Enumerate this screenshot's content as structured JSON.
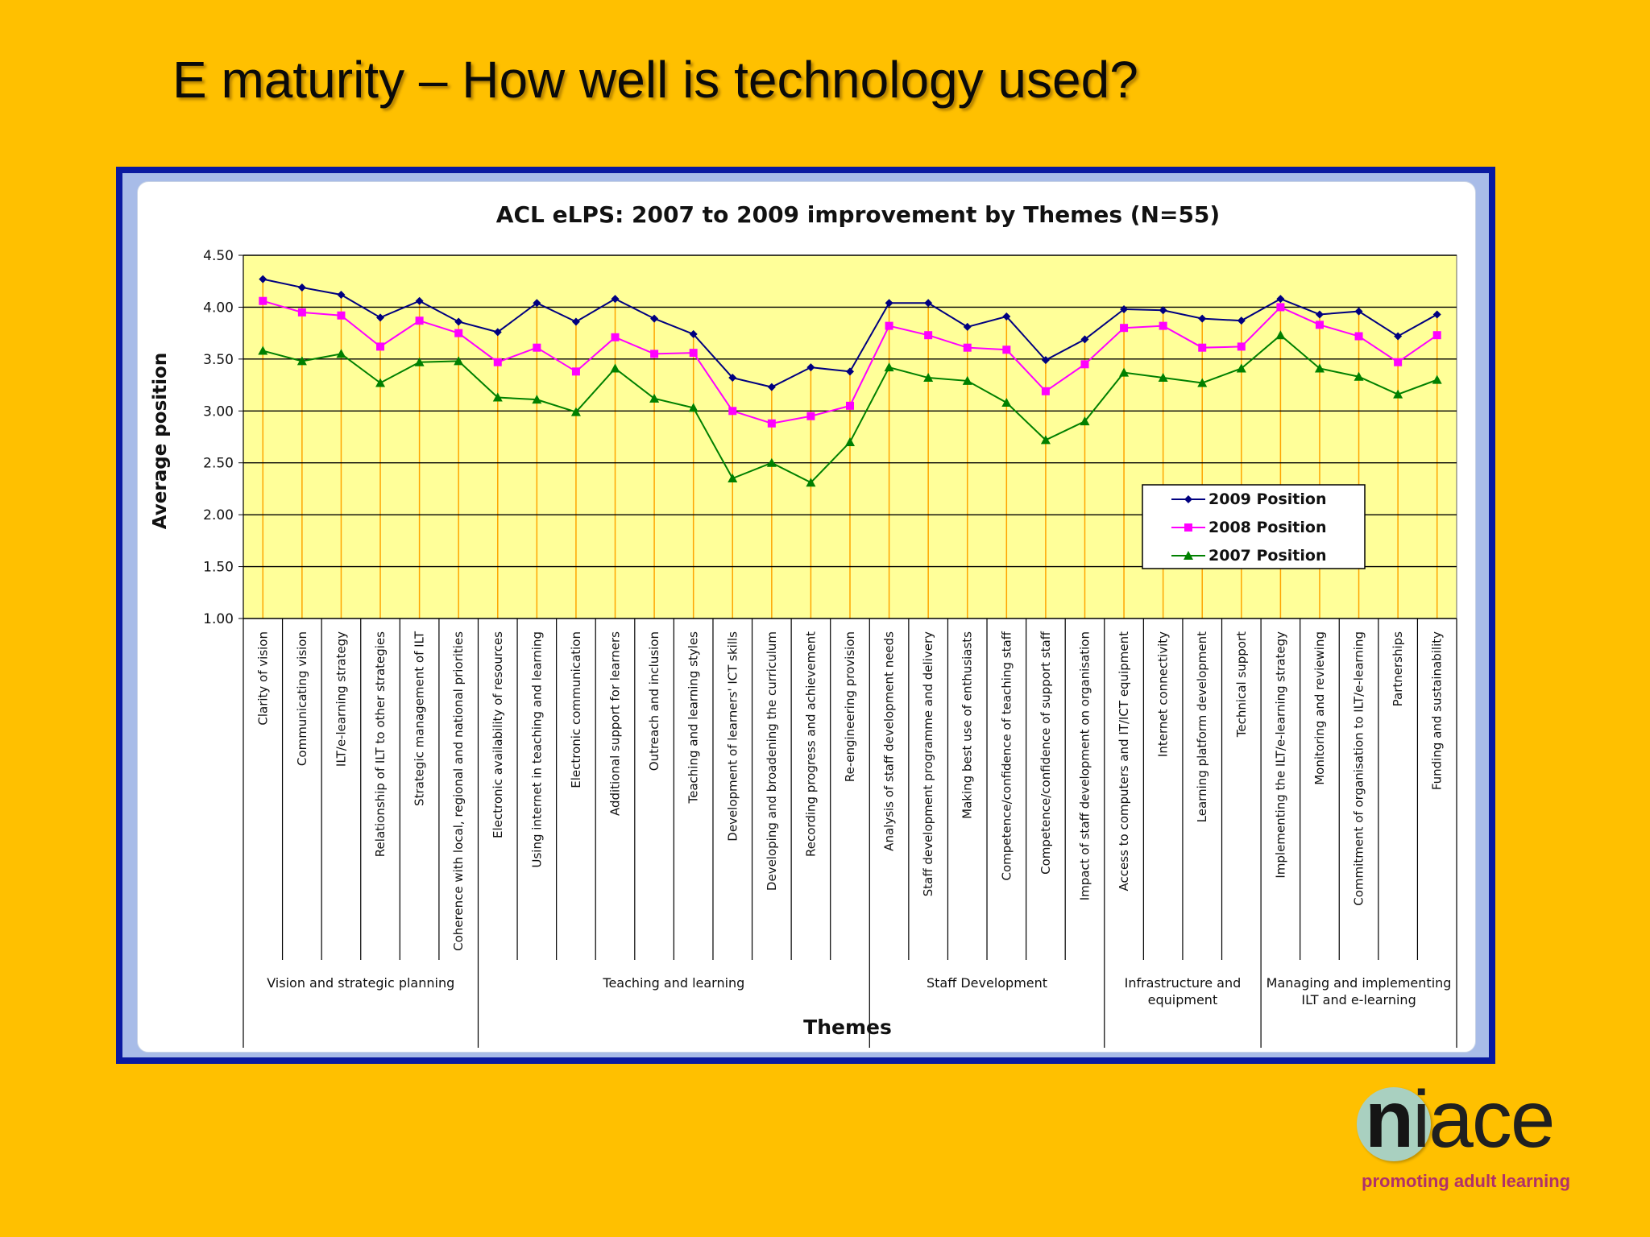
{
  "slide": {
    "title": "E maturity – How well is technology used?"
  },
  "logo": {
    "first_letter": "n",
    "rest": "iace",
    "tagline": "promoting adult learning"
  },
  "chart_data": {
    "type": "line",
    "title": "ACL eLPS: 2007 to 2009 improvement by Themes (N=55)",
    "xlabel": "Themes",
    "ylabel": "Average position",
    "ylim": [
      1.0,
      4.5
    ],
    "yticks": [
      "1.00",
      "1.50",
      "2.00",
      "2.50",
      "3.00",
      "3.50",
      "4.00",
      "4.50"
    ],
    "grid": true,
    "legend_position": "right",
    "plot_background": "#FFFF99",
    "categories": [
      "Clarity of vision",
      "Communicating vision",
      "ILT/e-learning strategy",
      "Relationship of ILT to other strategies",
      "Strategic management of ILT",
      "Coherence with local, regional and national priorities",
      "Electronic availability of resources",
      "Using internet in teaching and learning",
      "Electronic communication",
      "Additional support for learners",
      "Outreach and inclusion",
      "Teaching and learning styles",
      "Development of learners' ICT skills",
      "Developing and broadening the curriculum",
      "Recording progress and achievement",
      "Re-engineering provision",
      "Analysis of staff development needs",
      "Staff development programme and delivery",
      "Making best use of enthusiasts",
      "Competence/confidence of teaching staff",
      "Competence/confidence of support staff",
      "Impact of staff development on organisation",
      "Access to computers and IT/ICT equipment",
      "Internet connectivity",
      "Learning platform development",
      "Technical support",
      "Implementing the ILT/e-learning strategy",
      "Monitoring and reviewing",
      "Commitment of organisation to ILT/e-learning",
      "Partnerships",
      "Funding and sustainability"
    ],
    "groups": [
      {
        "label": "Vision and strategic planning",
        "start": 0,
        "end": 5
      },
      {
        "label": "Teaching and learning",
        "start": 6,
        "end": 15
      },
      {
        "label": "Staff Development",
        "start": 16,
        "end": 21
      },
      {
        "label": "Infrastructure and equipment",
        "start": 22,
        "end": 25
      },
      {
        "label": "Managing and implementing ILT and e-learning",
        "start": 26,
        "end": 30
      }
    ],
    "series": [
      {
        "name": "2009 Position",
        "color": "#000080",
        "marker": "diamond",
        "values": [
          4.27,
          4.19,
          4.12,
          3.9,
          4.06,
          3.86,
          3.76,
          4.04,
          3.86,
          4.08,
          3.89,
          3.74,
          3.32,
          3.23,
          3.42,
          3.38,
          4.04,
          4.04,
          3.81,
          3.91,
          3.49,
          3.69,
          3.98,
          3.97,
          3.89,
          3.87,
          4.08,
          3.93,
          3.96,
          3.72,
          3.93
        ]
      },
      {
        "name": "2008 Position",
        "color": "#FF00FF",
        "marker": "square",
        "values": [
          4.06,
          3.95,
          3.92,
          3.62,
          3.87,
          3.75,
          3.47,
          3.61,
          3.38,
          3.71,
          3.55,
          3.56,
          3.0,
          2.88,
          2.95,
          3.05,
          3.82,
          3.73,
          3.61,
          3.59,
          3.19,
          3.45,
          3.8,
          3.82,
          3.61,
          3.62,
          4.0,
          3.83,
          3.72,
          3.47,
          3.73
        ]
      },
      {
        "name": "2007 Position",
        "color": "#008000",
        "marker": "triangle",
        "values": [
          3.58,
          3.48,
          3.55,
          3.27,
          3.47,
          3.48,
          3.13,
          3.11,
          2.99,
          3.41,
          3.12,
          3.03,
          2.35,
          2.5,
          2.31,
          2.7,
          3.42,
          3.32,
          3.29,
          3.08,
          2.72,
          2.9,
          3.37,
          3.32,
          3.27,
          3.41,
          3.73,
          3.41,
          3.33,
          3.16,
          3.3
        ]
      }
    ]
  }
}
